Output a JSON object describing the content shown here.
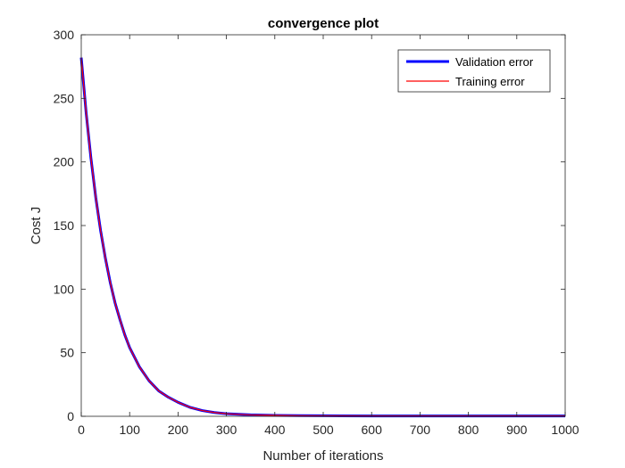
{
  "chart_data": {
    "type": "line",
    "title": "convergence plot",
    "xlabel": "Number of iterations",
    "ylabel": "Cost J",
    "xlim": [
      0,
      1000
    ],
    "ylim": [
      0,
      300
    ],
    "xticks": [
      0,
      100,
      200,
      300,
      400,
      500,
      600,
      700,
      800,
      900,
      1000
    ],
    "yticks": [
      0,
      50,
      100,
      150,
      200,
      250,
      300
    ],
    "grid": false,
    "legend_position": "top-right",
    "x": [
      0,
      10,
      20,
      30,
      40,
      50,
      60,
      70,
      80,
      90,
      100,
      120,
      140,
      160,
      180,
      200,
      225,
      250,
      275,
      300,
      350,
      400,
      450,
      500,
      600,
      700,
      800,
      900,
      1000
    ],
    "series": [
      {
        "name": "Validation error",
        "color": "#0000ff",
        "values": [
          282,
          239,
          203,
          172,
          146,
          124,
          105,
          89,
          76,
          64,
          54,
          39,
          28,
          20,
          15,
          11,
          7,
          4.5,
          3,
          2,
          1.1,
          0.7,
          0.5,
          0.4,
          0.3,
          0.3,
          0.3,
          0.3,
          0.3
        ]
      },
      {
        "name": "Training error",
        "color": "#ff0000",
        "values": [
          282,
          239,
          203,
          172,
          146,
          124,
          105,
          89,
          76,
          64,
          54,
          39,
          28,
          20,
          15,
          11,
          7,
          4.5,
          3,
          2,
          1.1,
          0.7,
          0.5,
          0.4,
          0.3,
          0.3,
          0.3,
          0.3,
          0.3
        ]
      }
    ]
  }
}
